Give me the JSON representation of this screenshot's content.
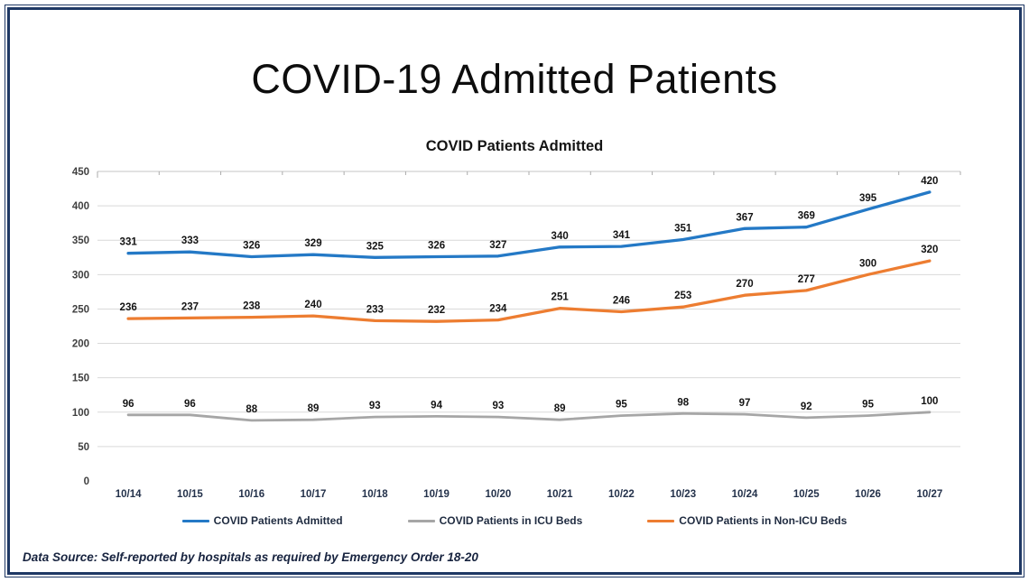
{
  "page": {
    "title": "COVID-19 Admitted Patients",
    "footer": "Data Source: Self-reported by hospitals as required by Emergency Order 18-20"
  },
  "chart_data": {
    "type": "line",
    "title": "COVID Patients Admitted",
    "x": [
      "10/14",
      "10/15",
      "10/16",
      "10/17",
      "10/18",
      "10/19",
      "10/20",
      "10/21",
      "10/22",
      "10/23",
      "10/24",
      "10/25",
      "10/26",
      "10/27"
    ],
    "series": [
      {
        "name": "COVID Patients Admitted",
        "color": "#2479C6",
        "values": [
          331,
          333,
          326,
          329,
          325,
          326,
          327,
          340,
          341,
          351,
          367,
          369,
          395,
          420
        ]
      },
      {
        "name": "COVID Patients in ICU Beds",
        "color": "#A6A6A6",
        "values": [
          96,
          96,
          88,
          89,
          93,
          94,
          93,
          89,
          95,
          98,
          97,
          92,
          95,
          100
        ]
      },
      {
        "name": "COVID Patients in Non-ICU Beds",
        "color": "#ED7D31",
        "values": [
          236,
          237,
          238,
          240,
          233,
          232,
          234,
          251,
          246,
          253,
          270,
          277,
          300,
          320
        ]
      }
    ],
    "ylim": [
      0,
      450
    ],
    "ytick_step": 50,
    "yticks": [
      0,
      50,
      100,
      150,
      200,
      250,
      300,
      350,
      400,
      450
    ],
    "grid": "horizontal",
    "legend_position": "bottom",
    "data_labels": true
  },
  "colors": {
    "frame": "#1F3864",
    "gridline": "#D9D9D9",
    "top_axis_line": "#C6C6C6",
    "tick_mark": "#ABABAB",
    "axis_text": "#404040",
    "data_label_text": "#141414"
  }
}
